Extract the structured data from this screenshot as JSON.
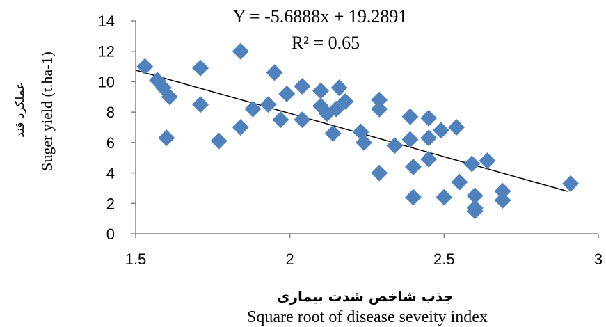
{
  "chart_data": {
    "type": "scatter",
    "equation": "Y = -5.6888x + 19.2891",
    "r2": "R² = 0.65",
    "xlabel": "Square root of disease seveity index",
    "xlabel_fa": "جذب شاخص شدت بیماری",
    "ylabel": "Suger yield (t.ha-1)",
    "ylabel_fa": "عملکرد قند",
    "xlim": [
      1.5,
      3
    ],
    "ylim": [
      0,
      14
    ],
    "x_ticks": [
      "1.5",
      "2",
      "2.5",
      "3"
    ],
    "y_ticks": [
      "0",
      "2",
      "4",
      "6",
      "8",
      "10",
      "12",
      "14"
    ],
    "trendline": {
      "slope": -5.6888,
      "intercept": 19.2891,
      "x_range": [
        1.5,
        2.9
      ]
    },
    "marker_color": "#4f81bd",
    "line_color": "#000000",
    "points": [
      [
        1.53,
        11.0
      ],
      [
        1.57,
        10.1
      ],
      [
        1.59,
        9.6
      ],
      [
        1.61,
        9.0
      ],
      [
        1.6,
        6.3
      ],
      [
        1.71,
        10.9
      ],
      [
        1.71,
        8.5
      ],
      [
        1.77,
        6.1
      ],
      [
        1.84,
        12.0
      ],
      [
        1.84,
        7.0
      ],
      [
        1.88,
        8.2
      ],
      [
        1.93,
        8.5
      ],
      [
        1.95,
        10.6
      ],
      [
        1.97,
        7.5
      ],
      [
        1.99,
        9.2
      ],
      [
        2.04,
        9.7
      ],
      [
        2.04,
        7.5
      ],
      [
        2.1,
        9.4
      ],
      [
        2.1,
        8.4
      ],
      [
        2.12,
        7.9
      ],
      [
        2.14,
        6.6
      ],
      [
        2.15,
        8.2
      ],
      [
        2.16,
        9.6
      ],
      [
        2.18,
        8.7
      ],
      [
        2.23,
        6.7
      ],
      [
        2.24,
        6.0
      ],
      [
        2.29,
        8.8
      ],
      [
        2.29,
        8.2
      ],
      [
        2.29,
        4.0
      ],
      [
        2.34,
        5.8
      ],
      [
        2.39,
        7.7
      ],
      [
        2.39,
        6.2
      ],
      [
        2.4,
        4.4
      ],
      [
        2.4,
        2.4
      ],
      [
        2.45,
        7.6
      ],
      [
        2.45,
        6.3
      ],
      [
        2.45,
        4.9
      ],
      [
        2.49,
        6.8
      ],
      [
        2.5,
        2.4
      ],
      [
        2.54,
        7.0
      ],
      [
        2.55,
        3.4
      ],
      [
        2.59,
        4.6
      ],
      [
        2.6,
        2.5
      ],
      [
        2.6,
        1.7
      ],
      [
        2.6,
        1.5
      ],
      [
        2.64,
        4.8
      ],
      [
        2.69,
        2.8
      ],
      [
        2.69,
        2.2
      ],
      [
        2.91,
        3.3
      ]
    ]
  }
}
